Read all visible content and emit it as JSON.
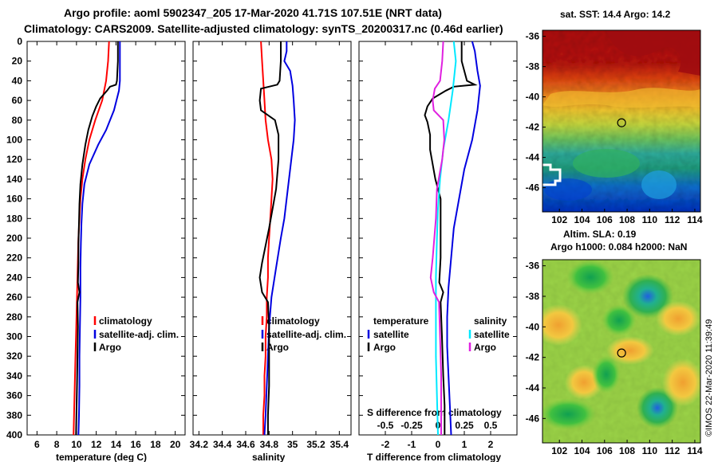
{
  "header": {
    "line1": "Argo profile: aoml 5902347_205 17-Mar-2020 41.71S 107.51E (NRT data)",
    "line2": "Climatology: CARS2009. Satellite-adjusted climatology: synTS_20200317.nc (0.46d earlier)"
  },
  "side_label": "©IMOS 22-Mar-2020 11:39:49",
  "colors": {
    "climatology": "#ff0000",
    "satellite_adj": "#0000e0",
    "argo": "#000000",
    "sal_satellite": "#00e8ff",
    "sal_argo": "#e020e0"
  },
  "chart_data": [
    {
      "type": "line",
      "name": "temperature",
      "xlabel": "temperature (deg C)",
      "ylabel": "",
      "xlim": [
        5,
        21
      ],
      "ylim": [
        400,
        0
      ],
      "x_ticks": [
        6,
        8,
        10,
        12,
        14,
        16,
        18,
        20
      ],
      "y_ticks": [
        0,
        20,
        40,
        60,
        80,
        100,
        120,
        140,
        160,
        180,
        200,
        220,
        240,
        260,
        280,
        300,
        320,
        340,
        360,
        380,
        400
      ],
      "legend": [
        "climatology",
        "satellite-adj. clim.",
        "Argo"
      ],
      "series": [
        {
          "name": "climatology",
          "color": "#ff0000",
          "points": [
            [
              13.3,
              0
            ],
            [
              13.2,
              20
            ],
            [
              13.0,
              40
            ],
            [
              12.6,
              60
            ],
            [
              11.9,
              80
            ],
            [
              11.3,
              100
            ],
            [
              10.9,
              120
            ],
            [
              10.6,
              140
            ],
            [
              10.4,
              160
            ],
            [
              10.3,
              180
            ],
            [
              10.2,
              200
            ],
            [
              10.15,
              220
            ],
            [
              10.1,
              240
            ],
            [
              10.05,
              260
            ],
            [
              10.0,
              280
            ],
            [
              9.95,
              300
            ],
            [
              9.9,
              320
            ],
            [
              9.85,
              340
            ],
            [
              9.8,
              360
            ],
            [
              9.75,
              380
            ],
            [
              9.7,
              400
            ]
          ]
        },
        {
          "name": "satellite-adj. clim.",
          "color": "#0000e0",
          "points": [
            [
              14.4,
              0
            ],
            [
              14.4,
              20
            ],
            [
              14.4,
              40
            ],
            [
              14.3,
              50
            ],
            [
              13.8,
              70
            ],
            [
              13.0,
              90
            ],
            [
              12.2,
              105
            ],
            [
              11.3,
              125
            ],
            [
              10.8,
              145
            ],
            [
              10.6,
              165
            ],
            [
              10.5,
              185
            ],
            [
              10.45,
              205
            ],
            [
              10.4,
              230
            ],
            [
              10.4,
              260
            ],
            [
              10.35,
              290
            ],
            [
              10.3,
              320
            ],
            [
              10.3,
              350
            ],
            [
              10.25,
              380
            ],
            [
              10.2,
              400
            ]
          ]
        },
        {
          "name": "Argo",
          "color": "#000000",
          "points": [
            [
              14.2,
              0
            ],
            [
              14.2,
              20
            ],
            [
              14.1,
              40
            ],
            [
              14.0,
              44
            ],
            [
              13.4,
              46
            ],
            [
              13.1,
              50
            ],
            [
              12.4,
              58
            ],
            [
              12.0,
              66
            ],
            [
              11.6,
              76
            ],
            [
              11.2,
              90
            ],
            [
              10.9,
              105
            ],
            [
              10.6,
              125
            ],
            [
              10.4,
              145
            ],
            [
              10.3,
              165
            ],
            [
              10.25,
              185
            ],
            [
              10.2,
              205
            ],
            [
              10.2,
              225
            ],
            [
              10.15,
              245
            ],
            [
              10.3,
              255
            ],
            [
              10.1,
              265
            ],
            [
              10.15,
              290
            ],
            [
              10.1,
              320
            ],
            [
              10.05,
              350
            ],
            [
              10.0,
              375
            ],
            [
              9.95,
              400
            ]
          ]
        }
      ]
    },
    {
      "type": "line",
      "name": "salinity",
      "xlabel": "salinity",
      "xlim": [
        34.15,
        35.5
      ],
      "ylim": [
        400,
        0
      ],
      "x_ticks": [
        34.2,
        34.4,
        34.6,
        34.8,
        35,
        35.2,
        35.4
      ],
      "legend": [
        "climatology",
        "satellite-adj. clim.",
        "Argo"
      ],
      "series": [
        {
          "name": "climatology",
          "color": "#ff0000",
          "points": [
            [
              34.73,
              0
            ],
            [
              34.74,
              20
            ],
            [
              34.75,
              40
            ],
            [
              34.76,
              60
            ],
            [
              34.77,
              80
            ],
            [
              34.79,
              100
            ],
            [
              34.82,
              120
            ],
            [
              34.83,
              140
            ],
            [
              34.82,
              160
            ],
            [
              34.81,
              180
            ],
            [
              34.8,
              200
            ],
            [
              34.79,
              220
            ],
            [
              34.79,
              240
            ],
            [
              34.78,
              260
            ],
            [
              34.78,
              280
            ],
            [
              34.77,
              300
            ],
            [
              34.77,
              320
            ],
            [
              34.76,
              340
            ],
            [
              34.76,
              360
            ],
            [
              34.75,
              380
            ],
            [
              34.75,
              400
            ]
          ]
        },
        {
          "name": "satellite-adj. clim.",
          "color": "#0000e0",
          "points": [
            [
              34.95,
              0
            ],
            [
              34.95,
              10
            ],
            [
              34.93,
              20
            ],
            [
              34.98,
              30
            ],
            [
              35.0,
              45
            ],
            [
              35.01,
              60
            ],
            [
              35.02,
              80
            ],
            [
              35.01,
              100
            ],
            [
              34.98,
              130
            ],
            [
              34.95,
              160
            ],
            [
              34.93,
              180
            ],
            [
              34.9,
              200
            ],
            [
              34.86,
              230
            ],
            [
              34.82,
              260
            ],
            [
              34.8,
              290
            ],
            [
              34.79,
              320
            ],
            [
              34.78,
              350
            ],
            [
              34.77,
              380
            ],
            [
              34.76,
              400
            ]
          ]
        },
        {
          "name": "Argo",
          "color": "#000000",
          "points": [
            [
              34.9,
              0
            ],
            [
              34.9,
              20
            ],
            [
              34.89,
              40
            ],
            [
              34.87,
              44
            ],
            [
              34.73,
              48
            ],
            [
              34.72,
              60
            ],
            [
              34.73,
              70
            ],
            [
              34.85,
              80
            ],
            [
              34.88,
              95
            ],
            [
              34.88,
              120
            ],
            [
              34.86,
              150
            ],
            [
              34.8,
              190
            ],
            [
              34.74,
              225
            ],
            [
              34.72,
              240
            ],
            [
              34.74,
              255
            ],
            [
              34.79,
              265
            ],
            [
              34.8,
              290
            ],
            [
              34.8,
              320
            ],
            [
              34.8,
              350
            ],
            [
              34.79,
              380
            ],
            [
              34.79,
              400
            ]
          ]
        }
      ]
    },
    {
      "type": "line",
      "name": "difference",
      "xlabel": "T difference from climatology",
      "secondary_xlabel": "S difference from climatology",
      "xlim": [
        -3,
        3
      ],
      "secondary_xlim": [
        -0.75,
        0.75
      ],
      "ylim": [
        400,
        0
      ],
      "x_ticks": [
        -2,
        -1,
        0,
        1,
        2
      ],
      "secondary_ticks": [
        "-0.5",
        "-0.25",
        "0",
        "0.25",
        "0.5"
      ],
      "secondary_tick_positions": [
        -0.5,
        -0.25,
        0,
        0.25,
        0.5
      ],
      "legend_left_title": "temperature",
      "legend_right_title": "salinity",
      "legend": [
        "satellite",
        "Argo",
        "satellite",
        "Argo"
      ],
      "series": [
        {
          "name": "T satellite",
          "color": "#0000e0",
          "points": [
            [
              1.3,
              0
            ],
            [
              1.4,
              10
            ],
            [
              1.5,
              30
            ],
            [
              1.6,
              45
            ],
            [
              1.5,
              70
            ],
            [
              1.3,
              100
            ],
            [
              1.0,
              130
            ],
            [
              0.8,
              160
            ],
            [
              0.6,
              190
            ],
            [
              0.5,
              220
            ],
            [
              0.4,
              250
            ],
            [
              0.35,
              280
            ],
            [
              0.35,
              310
            ],
            [
              0.4,
              340
            ],
            [
              0.45,
              370
            ],
            [
              0.5,
              400
            ]
          ]
        },
        {
          "name": "T Argo",
          "color": "#000000",
          "points": [
            [
              0.9,
              0
            ],
            [
              0.9,
              20
            ],
            [
              1.1,
              40
            ],
            [
              1.4,
              44
            ],
            [
              0.6,
              46
            ],
            [
              0.3,
              50
            ],
            [
              -0.2,
              58
            ],
            [
              -0.4,
              66
            ],
            [
              -0.5,
              75
            ],
            [
              -0.4,
              82
            ],
            [
              -0.3,
              95
            ],
            [
              -0.3,
              110
            ],
            [
              -0.2,
              125
            ],
            [
              -0.1,
              140
            ],
            [
              0.1,
              160
            ],
            [
              0.1,
              190
            ],
            [
              0.1,
              220
            ],
            [
              0.05,
              245
            ],
            [
              0.2,
              255
            ],
            [
              0.1,
              265
            ],
            [
              0.15,
              300
            ],
            [
              0.2,
              340
            ],
            [
              0.25,
              370
            ],
            [
              0.25,
              400
            ]
          ]
        },
        {
          "name": "S satellite",
          "color": "#00e8ff",
          "points": [
            [
              0.15,
              0
            ],
            [
              0.17,
              20
            ],
            [
              0.14,
              50
            ],
            [
              0.1,
              80
            ],
            [
              0.05,
              110
            ],
            [
              0.02,
              140
            ],
            [
              0.0,
              170
            ],
            [
              -0.01,
              200
            ],
            [
              -0.02,
              240
            ],
            [
              -0.02,
              280
            ],
            [
              -0.02,
              320
            ],
            [
              -0.01,
              360
            ],
            [
              0.0,
              400
            ]
          ]
        },
        {
          "name": "S Argo",
          "color": "#e020e0",
          "points": [
            [
              0.05,
              0
            ],
            [
              0.04,
              20
            ],
            [
              0.02,
              40
            ],
            [
              -0.03,
              48
            ],
            [
              -0.05,
              60
            ],
            [
              -0.04,
              70
            ],
            [
              0.05,
              80
            ],
            [
              0.06,
              100
            ],
            [
              0.04,
              120
            ],
            [
              -0.01,
              150
            ],
            [
              -0.02,
              180
            ],
            [
              -0.05,
              220
            ],
            [
              -0.07,
              240
            ],
            [
              -0.04,
              255
            ],
            [
              0.01,
              265
            ],
            [
              0.02,
              300
            ],
            [
              0.03,
              340
            ],
            [
              0.03,
              370
            ],
            [
              0.03,
              400
            ]
          ]
        }
      ]
    }
  ],
  "maps": [
    {
      "name": "sst-map",
      "title": "sat. SST: 14.4 Argo: 14.2",
      "x_ticks": [
        102,
        104,
        106,
        108,
        110,
        112,
        114
      ],
      "y_ticks": [
        -36,
        -38,
        -40,
        -42,
        -44,
        -46
      ],
      "xlim": [
        100.5,
        114.5
      ],
      "ylim": [
        -47.6,
        -35.6
      ],
      "argo_lon": 107.51,
      "argo_lat": -41.71
    },
    {
      "name": "sla-map",
      "title": "Altim. SLA: 0.19",
      "subtitle": "Argo h1000: 0.084 h2000: NaN",
      "x_ticks": [
        102,
        104,
        106,
        108,
        110,
        112,
        114
      ],
      "y_ticks": [
        -36,
        -38,
        -40,
        -42,
        -44,
        -46
      ],
      "xlim": [
        100.5,
        114.5
      ],
      "ylim": [
        -47.6,
        -35.6
      ],
      "argo_lon": 107.51,
      "argo_lat": -41.71
    }
  ]
}
